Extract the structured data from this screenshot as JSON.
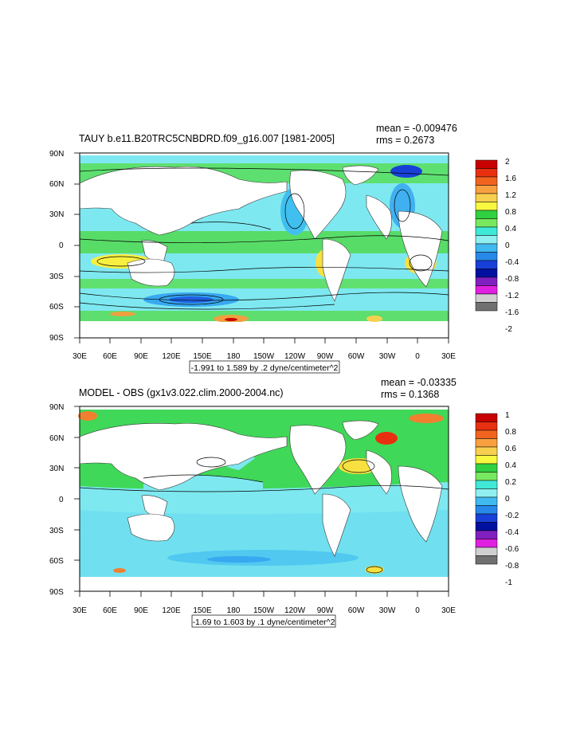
{
  "panels": [
    {
      "title": "TAUY b.e11.B20TRC5CNBDRD.f09_g16.007 [1981-2005]",
      "mean": "mean = -0.009476",
      "rms": "rms = 0.2673",
      "range_label": "-1.991 to 1.589 by .2 dyne/centimeter^2",
      "lat_labels": [
        "90N",
        "60N",
        "30N",
        "0",
        "30S",
        "60S",
        "90S"
      ],
      "lon_labels": [
        "30E",
        "60E",
        "90E",
        "120E",
        "150E",
        "180",
        "150W",
        "120W",
        "90W",
        "60W",
        "30W",
        "0",
        "30E"
      ],
      "colorbar": {
        "labels": [
          "2",
          "1.6",
          "1.2",
          "0.8",
          "0.4",
          "0",
          "-0.4",
          "-0.8",
          "-1.2",
          "-1.6",
          "-2"
        ],
        "colors": [
          "#c80000",
          "#e83010",
          "#f06420",
          "#f8a040",
          "#f8d050",
          "#f8f840",
          "#30d040",
          "#78e860",
          "#40e8d8",
          "#90f0f0",
          "#40b8f0",
          "#2888e8",
          "#1840d8",
          "#0010a0",
          "#8020c0",
          "#e020e0",
          "#d0d0d0",
          "#707070"
        ]
      }
    },
    {
      "title": "MODEL - OBS (gx1v3.022.clim.2000-2004.nc)",
      "mean": "mean = -0.03335",
      "rms": "rms = 0.1368",
      "range_label": "-1.69 to 1.603 by .1 dyne/centimeter^2",
      "lat_labels": [
        "90N",
        "60N",
        "30N",
        "0",
        "30S",
        "60S",
        "90S"
      ],
      "lon_labels": [
        "30E",
        "60E",
        "90E",
        "120E",
        "150E",
        "180",
        "150W",
        "120W",
        "90W",
        "60W",
        "30W",
        "0",
        "30E"
      ],
      "colorbar": {
        "labels": [
          "1",
          "0.8",
          "0.6",
          "0.4",
          "0.2",
          "0",
          "-0.2",
          "-0.4",
          "-0.6",
          "-0.8",
          "-1"
        ],
        "colors": [
          "#c80000",
          "#e83010",
          "#f06420",
          "#f8a040",
          "#f8d050",
          "#f8f840",
          "#30d040",
          "#78e860",
          "#40e8d8",
          "#90f0f0",
          "#40b8f0",
          "#2888e8",
          "#1840d8",
          "#0010a0",
          "#8020c0",
          "#e020e0",
          "#d0d0d0",
          "#707070"
        ]
      }
    }
  ]
}
